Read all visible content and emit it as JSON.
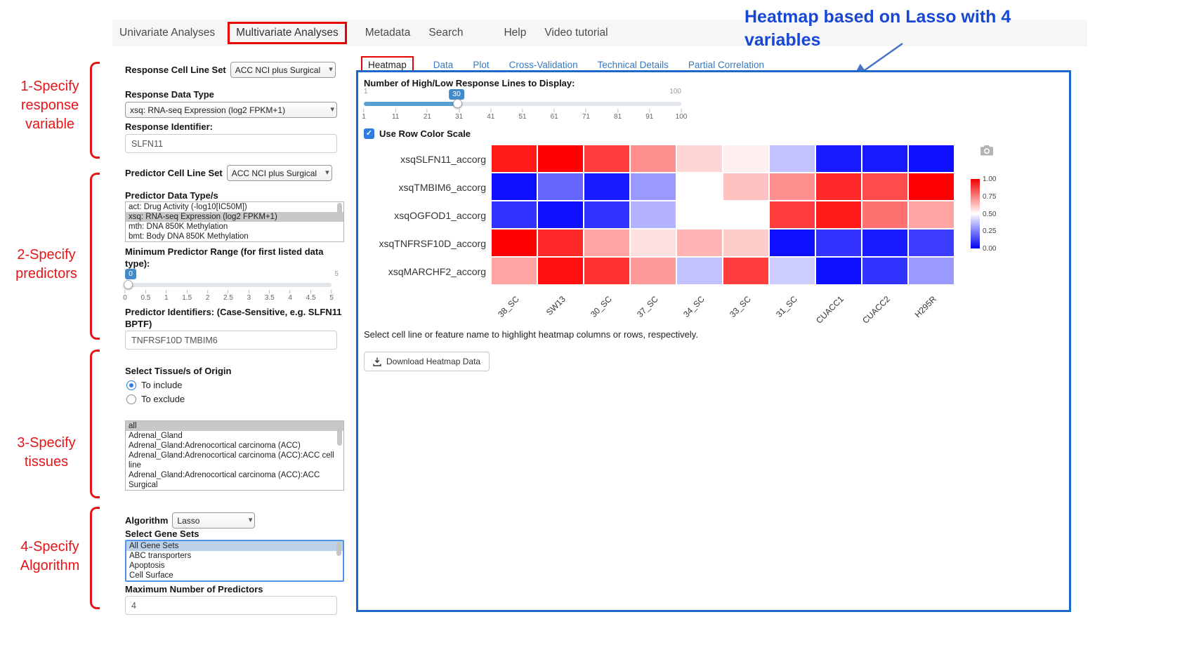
{
  "icons": {
    "chevron_down": "▾",
    "check": "✓"
  },
  "annotations": {
    "step1": "1-Specify response variable",
    "step2": "2-Specify predictors",
    "step3": "3-Specify tissues",
    "step4": "4-Specify Algorithm",
    "heatmap_note": "Heatmap based on Lasso with 4 variables",
    "annotation_red": "#e41518",
    "annotation_blue": "#1747d3",
    "panel_border_blue": "#1b6ac9"
  },
  "nav": {
    "items": [
      {
        "label": "Univariate Analyses",
        "active": false
      },
      {
        "label": "Multivariate Analyses",
        "active": true
      },
      {
        "label": "Metadata",
        "active": false
      },
      {
        "label": "Search",
        "active": false
      },
      {
        "label": "Help",
        "active": false
      },
      {
        "label": "Video tutorial",
        "active": false
      }
    ]
  },
  "form": {
    "response_cell_line_set": {
      "label": "Response Cell Line Set",
      "value": "ACC NCI plus Surgical"
    },
    "response_data_type": {
      "label": "Response Data Type",
      "value": "xsq: RNA-seq Expression (log2 FPKM+1)"
    },
    "response_identifier": {
      "label": "Response Identifier:",
      "value": "SLFN11"
    },
    "predictor_cell_line_set": {
      "label": "Predictor Cell Line Set",
      "value": "ACC NCI plus Surgical"
    },
    "predictor_data_types": {
      "label": "Predictor Data Type/s",
      "options": [
        {
          "label": "act: Drug Activity (-log10[IC50M])",
          "selected": false
        },
        {
          "label": "xsq: RNA-seq Expression (log2 FPKM+1)",
          "selected": true
        },
        {
          "label": "mth: DNA 850K Methylation",
          "selected": false
        },
        {
          "label": "bmt: Body DNA 850K Methylation",
          "selected": false
        }
      ]
    },
    "min_predictor_range": {
      "label": "Minimum Predictor Range (for first listed data type):",
      "value": "0",
      "min": "0",
      "max": "5",
      "ticks": [
        "0",
        "0.5",
        "1",
        "1.5",
        "2",
        "2.5",
        "3",
        "3.5",
        "4",
        "4.5",
        "5"
      ]
    },
    "predictor_identifiers": {
      "label": "Predictor Identifiers: (Case-Sensitive, e.g. SLFN11 BPTF)",
      "value": "TNFRSF10D TMBIM6"
    },
    "tissue": {
      "label": "Select Tissue/s of Origin",
      "radios": [
        {
          "label": "To include",
          "selected": true
        },
        {
          "label": "To exclude",
          "selected": false
        }
      ],
      "options": [
        {
          "label": "all",
          "selected": true
        },
        {
          "label": "Adrenal_Gland",
          "selected": false
        },
        {
          "label": "Adrenal_Gland:Adrenocortical carcinoma (ACC)",
          "selected": false
        },
        {
          "label": "Adrenal_Gland:Adrenocortical carcinoma (ACC):ACC cell line",
          "selected": false
        },
        {
          "label": "Adrenal_Gland:Adrenocortical carcinoma (ACC):ACC Surgical",
          "selected": false
        }
      ]
    },
    "algorithm": {
      "label": "Algorithm",
      "value": "Lasso"
    },
    "gene_sets": {
      "label": "Select Gene Sets",
      "options": [
        {
          "label": "All Gene Sets",
          "selected": true
        },
        {
          "label": "ABC transporters",
          "selected": false
        },
        {
          "label": "Apoptosis",
          "selected": false
        },
        {
          "label": "Cell Surface",
          "selected": false
        }
      ]
    },
    "max_predictors": {
      "label": "Maximum Number of Predictors",
      "value": "4"
    }
  },
  "main": {
    "tabs": [
      {
        "label": "Heatmap",
        "active": true
      },
      {
        "label": "Data",
        "active": false
      },
      {
        "label": "Plot",
        "active": false
      },
      {
        "label": "Cross-Validation",
        "active": false
      },
      {
        "label": "Technical Details",
        "active": false
      },
      {
        "label": "Partial Correlation",
        "active": false
      }
    ],
    "lines_slider": {
      "label": "Number of High/Low Response Lines to Display:",
      "value": "30",
      "min": "1",
      "max": "100",
      "ticks": [
        "1",
        "11",
        "21",
        "31",
        "41",
        "51",
        "61",
        "71",
        "81",
        "91",
        "100"
      ]
    },
    "row_color_scale": {
      "label": "Use Row Color Scale",
      "checked": true
    },
    "hint": "Select cell line or feature name to highlight heatmap columns or rows, respectively.",
    "download_button": "Download Heatmap Data"
  },
  "chart_data": {
    "type": "heatmap",
    "rows": [
      "xsqSLFN11_accorg",
      "xsqTMBIM6_accorg",
      "xsqOGFOD1_accorg",
      "xsqTNFRSF10D_accorg",
      "xsqMARCHF2_accorg"
    ],
    "columns": [
      "38_SC",
      "SW13",
      "30_SC",
      "37_SC",
      "34_SC",
      "33_SC",
      "31_SC",
      "CUACC1",
      "CUACC2",
      "H295R"
    ],
    "values": [
      [
        0.95,
        1.0,
        0.88,
        0.72,
        0.58,
        0.53,
        0.38,
        0.05,
        0.05,
        0.03
      ],
      [
        0.03,
        0.2,
        0.05,
        0.3,
        0.5,
        0.62,
        0.72,
        0.92,
        0.85,
        1.0
      ],
      [
        0.1,
        0.03,
        0.1,
        0.35,
        0.5,
        0.5,
        0.88,
        0.95,
        0.78,
        0.68
      ],
      [
        1.0,
        0.92,
        0.68,
        0.56,
        0.65,
        0.6,
        0.03,
        0.1,
        0.05,
        0.12
      ],
      [
        0.68,
        0.97,
        0.9,
        0.7,
        0.38,
        0.88,
        0.4,
        0.03,
        0.1,
        0.3
      ]
    ],
    "value_range": [
      0,
      1
    ],
    "colorbar": {
      "ticks": [
        "1.00",
        "0.75",
        "0.50",
        "0.25",
        "0.00"
      ],
      "high_color": "#ff0000",
      "mid_color": "#ffffff",
      "low_color": "#0000ff",
      "position": "right"
    },
    "legend_note": "row-scaled values, red=high, blue=low"
  }
}
